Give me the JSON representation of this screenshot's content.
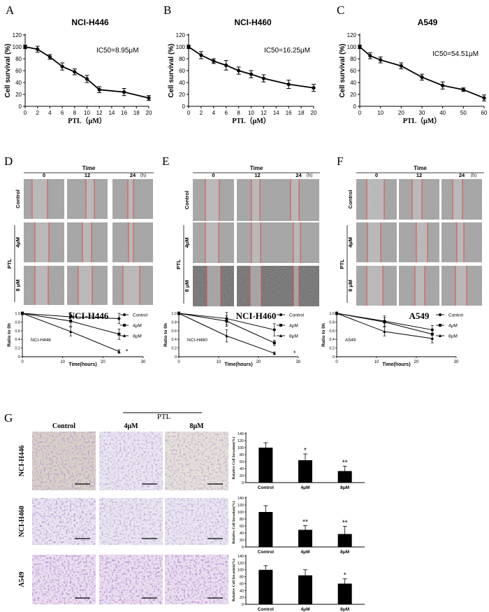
{
  "figure": {
    "survival_panels": [
      {
        "letter": "A",
        "title": "NCI-H446",
        "ic50": "IC50=8.95μM"
      },
      {
        "letter": "B",
        "title": "NCI-H460",
        "ic50": "IC50=16.25μM"
      },
      {
        "letter": "C",
        "title": "A549",
        "ic50": "IC50=54.51μM"
      }
    ],
    "wound_panels": [
      {
        "letter": "D",
        "cell": "NCI-H446"
      },
      {
        "letter": "E",
        "cell": "NCI-H460"
      },
      {
        "letter": "F",
        "cell": "A549"
      }
    ],
    "wound_header": {
      "time_label": "Time",
      "times": [
        "0",
        "12",
        "24"
      ],
      "unit": "（h）"
    },
    "wound_rows": {
      "control": "Control",
      "ptl": "PTL",
      "dose_4": "4μM",
      "dose_8": "8 μM"
    },
    "invasion": {
      "letter": "G",
      "ptl_label": "PTL",
      "col_labels": [
        "Control",
        "4μM",
        "8μM"
      ],
      "row_labels": [
        "NCI-H446",
        "NCI-H460",
        "A549"
      ]
    },
    "colors": {
      "line": "#000000",
      "stain_purple": "#7a4aa8",
      "wound_line": "#e8413c",
      "cell_gray": "#9a9a9a"
    }
  },
  "chart_data": [
    {
      "type": "line",
      "panel": "A",
      "title": "NCI-H446",
      "xlabel": "PTL（μM）",
      "ylabel": "Cell survival (%)",
      "x": [
        0,
        2,
        4,
        6,
        8,
        10,
        12,
        16,
        20
      ],
      "y": [
        100,
        96,
        83,
        67,
        58,
        46,
        28,
        24,
        14
      ],
      "err": [
        3,
        5,
        4,
        6,
        5,
        6,
        5,
        6,
        4
      ],
      "xlim": [
        0,
        20
      ],
      "ylim": [
        0,
        120
      ],
      "xticks": [
        0,
        2,
        4,
        6,
        8,
        10,
        12,
        14,
        16,
        18,
        20
      ],
      "yticks": [
        0,
        20,
        40,
        60,
        80,
        100,
        120
      ]
    },
    {
      "type": "line",
      "panel": "B",
      "title": "NCI-H460",
      "xlabel": "PTL（μM）",
      "ylabel": "Cell survival (%)",
      "x": [
        0,
        2,
        4,
        6,
        8,
        10,
        12,
        16,
        20
      ],
      "y": [
        100,
        86,
        76,
        69,
        60,
        54,
        47,
        37,
        31
      ],
      "err": [
        3,
        6,
        4,
        8,
        6,
        6,
        6,
        7,
        6
      ],
      "xlim": [
        0,
        20
      ],
      "ylim": [
        0,
        120
      ],
      "xticks": [
        0,
        2,
        4,
        6,
        8,
        10,
        12,
        14,
        16,
        18,
        20
      ],
      "yticks": [
        0,
        20,
        40,
        60,
        80,
        100,
        120
      ]
    },
    {
      "type": "line",
      "panel": "C",
      "title": "A549",
      "xlabel": "PTL（μM）",
      "ylabel": "Cell survival (%)",
      "x": [
        0,
        5,
        10,
        20,
        30,
        40,
        50,
        60
      ],
      "y": [
        100,
        85,
        78,
        68,
        49,
        35,
        28,
        14
      ],
      "err": [
        3,
        5,
        5,
        5,
        5,
        6,
        3,
        5
      ],
      "xlim": [
        0,
        60
      ],
      "ylim": [
        0,
        120
      ],
      "xticks": [
        0,
        10,
        20,
        30,
        40,
        50,
        60
      ],
      "yticks": [
        0,
        20,
        40,
        60,
        80,
        100,
        120
      ]
    },
    {
      "type": "line",
      "panel": "D",
      "label": "NCI-H446",
      "xlabel": "Time(hours)",
      "ylabel": "Ratio to 0h",
      "xlim": [
        0,
        30
      ],
      "ylim": [
        0,
        1.0
      ],
      "xticks": [
        0,
        10,
        20,
        30
      ],
      "yticks": [
        0,
        0.2,
        0.4,
        0.6,
        0.8,
        1.0
      ],
      "annotation": "*",
      "series": [
        {
          "name": "Control",
          "x": [
            0,
            12,
            24
          ],
          "y": [
            1.0,
            0.92,
            0.88
          ],
          "err": [
            0.03,
            0.1,
            0.12
          ]
        },
        {
          "name": "4μM",
          "x": [
            0,
            12,
            24
          ],
          "y": [
            1.0,
            0.82,
            0.52
          ],
          "err": [
            0.03,
            0.12,
            0.12
          ]
        },
        {
          "name": "8μM",
          "x": [
            0,
            12,
            24
          ],
          "y": [
            1.0,
            0.58,
            0.12
          ],
          "err": [
            0.03,
            0.1,
            0.04
          ]
        }
      ]
    },
    {
      "type": "line",
      "panel": "E",
      "label": "NCI-H460",
      "xlabel": "Time(hours)",
      "ylabel": "Ratio to 0h",
      "xlim": [
        0,
        30
      ],
      "ylim": [
        0,
        1.0
      ],
      "xticks": [
        0,
        10,
        20,
        30
      ],
      "yticks": [
        0,
        0.2,
        0.4,
        0.6,
        0.8,
        1.0
      ],
      "annotation": "*",
      "series": [
        {
          "name": "Control",
          "x": [
            0,
            12,
            24
          ],
          "y": [
            1.0,
            0.88,
            0.62
          ],
          "err": [
            0.03,
            0.14,
            0.14
          ]
        },
        {
          "name": "4μM",
          "x": [
            0,
            12,
            24
          ],
          "y": [
            1.0,
            0.82,
            0.32
          ],
          "err": [
            0.03,
            0.12,
            0.06
          ]
        },
        {
          "name": "8μM",
          "x": [
            0,
            12,
            24
          ],
          "y": [
            1.0,
            0.48,
            0.08
          ],
          "err": [
            0.03,
            0.14,
            0.03
          ]
        }
      ]
    },
    {
      "type": "line",
      "panel": "F",
      "label": "A549",
      "xlabel": "Time(hours)",
      "ylabel": "Ratio to 0h",
      "xlim": [
        0,
        30
      ],
      "ylim": [
        0,
        1.0
      ],
      "xticks": [
        0,
        10,
        20,
        30
      ],
      "yticks": [
        0,
        0.2,
        0.4,
        0.6,
        0.8,
        1.0
      ],
      "series": [
        {
          "name": "Control",
          "x": [
            0,
            12,
            24
          ],
          "y": [
            1.0,
            0.82,
            0.62
          ],
          "err": [
            0.03,
            0.12,
            0.1
          ]
        },
        {
          "name": "4μM",
          "x": [
            0,
            12,
            24
          ],
          "y": [
            1.0,
            0.8,
            0.52
          ],
          "err": [
            0.03,
            0.1,
            0.1
          ]
        },
        {
          "name": "8μM",
          "x": [
            0,
            12,
            24
          ],
          "y": [
            1.0,
            0.58,
            0.42
          ],
          "err": [
            0.03,
            0.1,
            0.1
          ]
        }
      ]
    },
    {
      "type": "bar",
      "panel": "G",
      "row": "NCI-H446",
      "ylabel": "Relative Cell Invasion(%)",
      "categories": [
        "Control",
        "4μM",
        "8μM"
      ],
      "values": [
        100,
        64,
        33
      ],
      "err": [
        14,
        18,
        14
      ],
      "sig": [
        "",
        "*",
        "**"
      ],
      "ylim": [
        0,
        140
      ],
      "yticks": [
        0,
        20,
        40,
        60,
        80,
        100,
        120,
        140
      ]
    },
    {
      "type": "bar",
      "panel": "G",
      "row": "NCI-H460",
      "ylabel": "Relative Cell Invasion(%)",
      "categories": [
        "Control",
        "4μM",
        "8μM"
      ],
      "values": [
        100,
        49,
        37
      ],
      "err": [
        18,
        12,
        22
      ],
      "sig": [
        "",
        "**",
        "**"
      ],
      "ylim": [
        0,
        140
      ],
      "yticks": [
        0,
        20,
        40,
        60,
        80,
        100,
        120,
        140
      ]
    },
    {
      "type": "bar",
      "panel": "G",
      "row": "A549",
      "ylabel": "Relative Cell Invasion(%)",
      "categories": [
        "Control",
        "4μM",
        "8μM"
      ],
      "values": [
        100,
        84,
        60
      ],
      "err": [
        12,
        16,
        14
      ],
      "sig": [
        "",
        "",
        "*"
      ],
      "ylim": [
        0,
        140
      ],
      "yticks": [
        0,
        20,
        40,
        60,
        80,
        100,
        120,
        140
      ]
    }
  ]
}
